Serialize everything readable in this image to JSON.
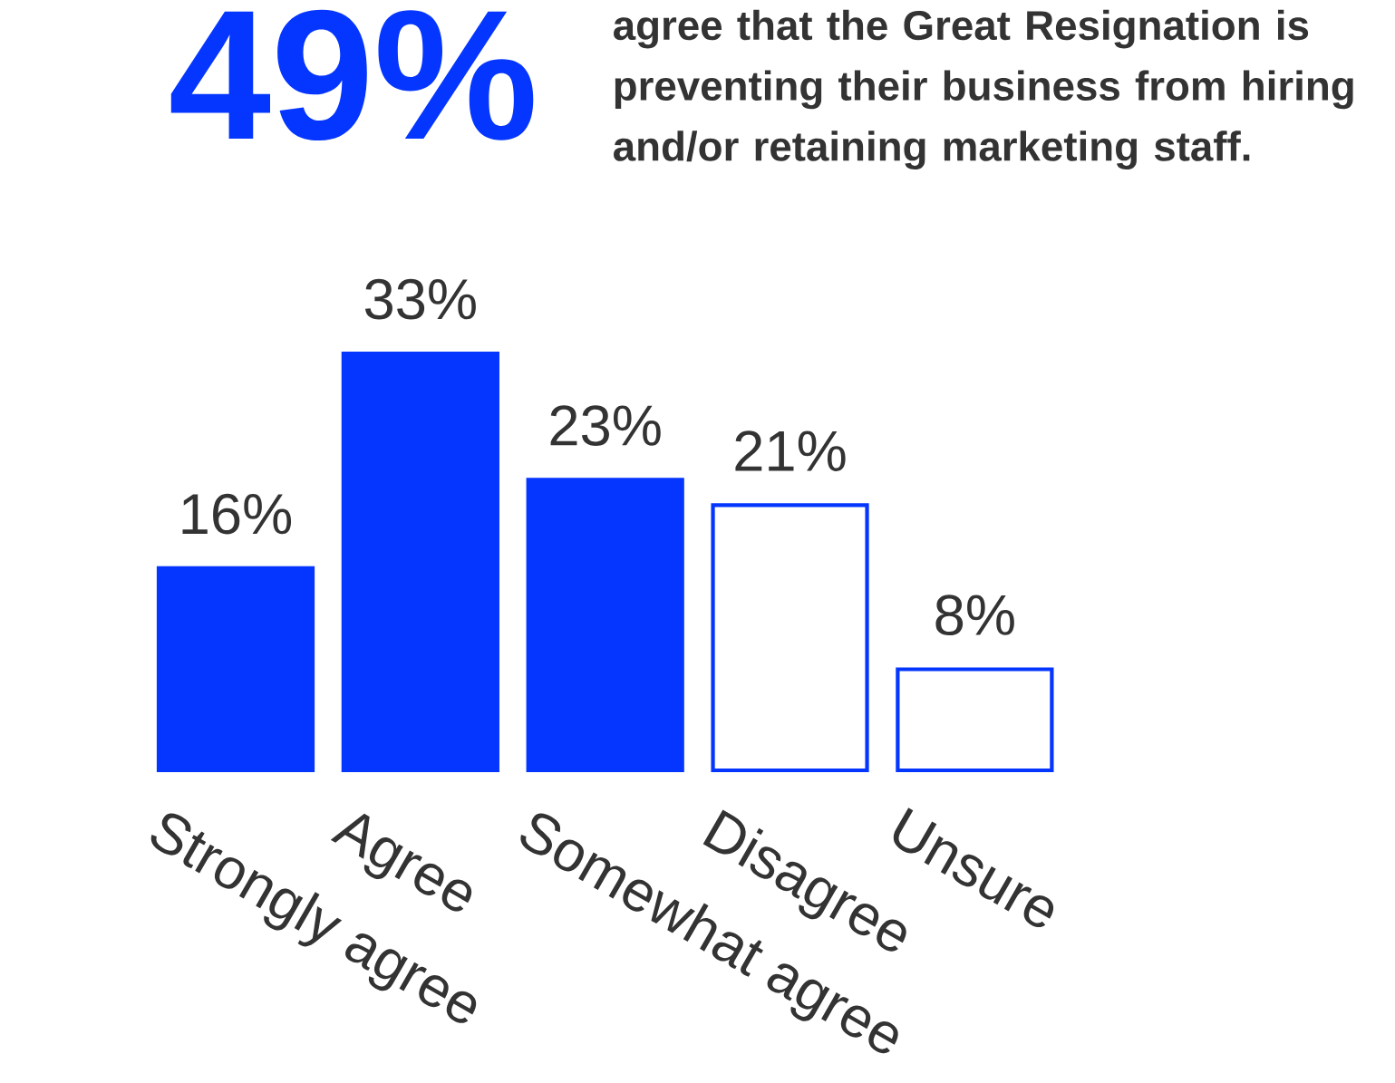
{
  "chart_data": {
    "type": "bar",
    "title": "49%",
    "subtitle": "agree that the Great Resignation is preventing their business from hiring and/or retaining marketing staff.",
    "categories": [
      "Strongly agree",
      "Agree",
      "Somewhat agree",
      "Disagree",
      "Unsure"
    ],
    "values": [
      16,
      33,
      23,
      21,
      8
    ],
    "value_labels": [
      "16%",
      "33%",
      "23%",
      "21%",
      "8%"
    ],
    "color": "#0536ff",
    "colors": [
      "#0536ff",
      "#0536ff",
      "#0536ff",
      "#ffffff",
      "#ffffff"
    ]
  }
}
